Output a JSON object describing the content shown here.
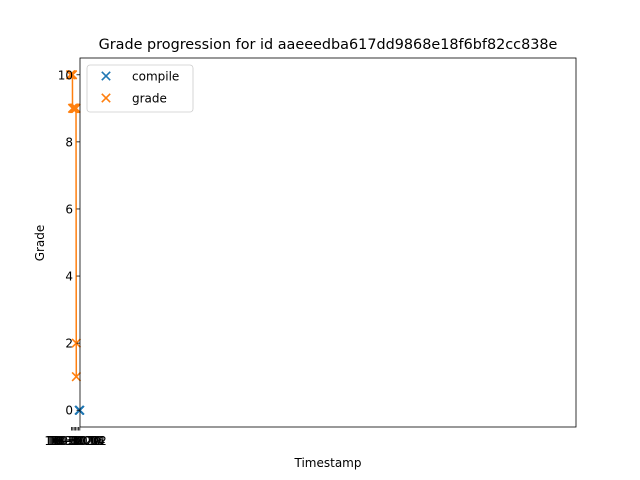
{
  "chart_data": {
    "type": "scatter",
    "title": "Grade progression for id aaeeedba617dd9868e18f6bf82cc838e",
    "xlabel": "Timestamp",
    "ylabel": "Grade",
    "x_axis": "datetime",
    "xlim": [
      "10-30 11:45",
      "11-01 01:30"
    ],
    "ylim": [
      -0.5,
      10.5
    ],
    "x_ticks": [
      {
        "value": "10-30 12:00",
        "label": "10-30 12"
      },
      {
        "value": "10-30 14:00",
        "label": "10-30 14"
      },
      {
        "value": "10-30 16:00",
        "label": "10-30 16"
      },
      {
        "value": "10-30 18:00",
        "label": "10-30 18"
      },
      {
        "value": "10-30 20:00",
        "label": "10-30 20"
      },
      {
        "value": "10-30 22:00",
        "label": "10-30 22"
      },
      {
        "value": "10-31 00:00",
        "label": "10-31 00"
      }
    ],
    "y_ticks": [
      0,
      2,
      4,
      6,
      8,
      10
    ],
    "grid": false,
    "legend_position": "top-left",
    "series": [
      {
        "name": "compile",
        "color": "#1f77b4",
        "marker": "x",
        "connect": false,
        "points": [
          {
            "x": "10-30 12:05",
            "y": 0
          },
          {
            "x": "10-30 12:10",
            "y": 0
          },
          {
            "x": "10-30 12:15",
            "y": 0
          },
          {
            "x": "10-30 12:20",
            "y": 0
          },
          {
            "x": "10-30 12:28",
            "y": 0
          },
          {
            "x": "10-30 12:35",
            "y": 0
          },
          {
            "x": "10-30 12:45",
            "y": 0
          },
          {
            "x": "10-30 12:52",
            "y": 0
          }
        ]
      },
      {
        "name": "grade",
        "color": "#ff7f0e",
        "marker": "x",
        "connect": true,
        "points": [
          {
            "x": "10-30 17:00",
            "y": 1
          },
          {
            "x": "10-30 17:05",
            "y": 2
          },
          {
            "x": "10-30 17:25",
            "y": 9
          },
          {
            "x": "10-30 17:55",
            "y": 9
          },
          {
            "x": "10-30 18:30",
            "y": 9
          },
          {
            "x": "10-30 18:40",
            "y": 9
          },
          {
            "x": "10-30 18:50",
            "y": 9
          },
          {
            "x": "10-30 18:55",
            "y": 9
          },
          {
            "x": "10-30 20:10",
            "y": 9
          },
          {
            "x": "10-30 20:15",
            "y": 9
          },
          {
            "x": "10-30 20:20",
            "y": 9
          },
          {
            "x": "10-30 20:25",
            "y": 9
          },
          {
            "x": "10-30 20:32",
            "y": 9
          },
          {
            "x": "10-30 21:00",
            "y": 9
          },
          {
            "x": "10-30 21:05",
            "y": 9
          },
          {
            "x": "10-30 21:10",
            "y": 9
          },
          {
            "x": "10-30 22:25",
            "y": 9
          },
          {
            "x": "10-30 22:30",
            "y": 10
          },
          {
            "x": "10-30 22:35",
            "y": 10
          },
          {
            "x": "10-30 22:40",
            "y": 10
          },
          {
            "x": "10-30 22:45",
            "y": 10
          },
          {
            "x": "10-31 00:55",
            "y": 10
          },
          {
            "x": "10-31 01:00",
            "y": 10
          },
          {
            "x": "10-31 01:05",
            "y": 10
          }
        ]
      }
    ]
  }
}
